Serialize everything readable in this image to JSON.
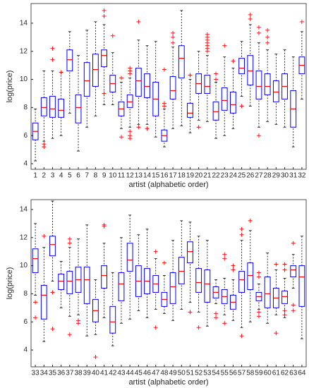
{
  "chart_data": [
    {
      "type": "box",
      "xlabel": "artist (alphabetic order)",
      "ylabel": "log(price)",
      "categories": [
        "1",
        "2",
        "3",
        "4",
        "5",
        "6",
        "7",
        "8",
        "9",
        "10",
        "11",
        "12",
        "13",
        "14",
        "15",
        "16",
        "17",
        "18",
        "19",
        "20",
        "21",
        "22",
        "23",
        "24",
        "25",
        "26",
        "27",
        "28",
        "29",
        "30",
        "31",
        "32"
      ],
      "min": [
        4.2,
        5.6,
        5.8,
        6.0,
        7.6,
        4.9,
        6.6,
        7.4,
        8.2,
        8.2,
        6.5,
        6.6,
        6.8,
        6.8,
        5.9,
        5.2,
        6.5,
        6.7,
        6.2,
        7.1,
        7.0,
        5.8,
        6.0,
        6.5,
        8.8,
        8.1,
        6.6,
        7.0,
        6.8,
        6.6,
        5.2,
        8.6
      ],
      "q1": [
        5.7,
        7.4,
        7.3,
        7.3,
        10.6,
        6.9,
        8.8,
        9.5,
        10.9,
        9.1,
        7.4,
        8.0,
        8.8,
        8.7,
        7.4,
        5.6,
        8.6,
        10.1,
        7.3,
        9.0,
        9.0,
        7.1,
        7.8,
        7.6,
        10.4,
        9.6,
        8.6,
        8.9,
        8.4,
        8.6,
        6.6,
        10.4
      ],
      "median": [
        6.3,
        8.0,
        7.9,
        7.8,
        11.4,
        8.0,
        9.9,
        10.7,
        11.7,
        9.7,
        7.9,
        8.4,
        9.9,
        9.5,
        8.6,
        6.0,
        9.2,
        11.5,
        7.6,
        9.7,
        9.5,
        7.7,
        8.5,
        8.2,
        10.8,
        10.6,
        9.5,
        9.5,
        9.1,
        9.5,
        7.9,
        11.0
      ],
      "q3": [
        6.9,
        8.7,
        8.8,
        8.6,
        12.1,
        8.9,
        11.2,
        11.8,
        12.1,
        10.3,
        8.4,
        8.9,
        10.8,
        10.4,
        9.8,
        6.4,
        10.2,
        12.4,
        8.3,
        10.4,
        10.3,
        8.4,
        9.4,
        9.1,
        11.5,
        11.7,
        10.6,
        10.4,
        9.9,
        10.4,
        9.2,
        11.6
      ],
      "max": [
        7.9,
        10.6,
        10.6,
        10.5,
        13.4,
        11.7,
        13.5,
        14.1,
        13.9,
        11.9,
        9.8,
        10.1,
        12.8,
        12.4,
        12.7,
        7.9,
        12.3,
        14.9,
        10.0,
        12.0,
        11.7,
        9.8,
        11.6,
        10.8,
        12.7,
        13.9,
        12.6,
        12.1,
        11.8,
        12.1,
        11.6,
        13.4
      ],
      "outliers": [
        [],
        [
          5.2,
          5.4
        ],
        [
          11.4,
          12.2
        ],
        [
          10.5
        ],
        [],
        [],
        [],
        [],
        [
          14.5,
          14.9,
          9.0
        ],
        [
          13.1
        ],
        [
          5.9,
          10.1
        ],
        [
          10.4,
          10.6,
          10.8,
          6.3,
          6.0,
          5.8
        ],
        [
          14.1,
          6.6
        ],
        [
          6.5
        ],
        [],
        [
          8.1,
          8.3,
          10.7
        ],
        [
          12.6,
          13.0,
          13.3
        ],
        [],
        [
          10.3
        ],
        [
          6.6
        ],
        [
          12.0,
          12.2,
          12.4,
          12.6,
          12.8,
          13.0,
          13.2
        ],
        [
          10.0,
          10.4
        ],
        [
          12.4
        ],
        [
          11.3
        ],
        [
          8.1
        ],
        [
          14.3,
          14.6
        ],
        [
          13.3,
          13.7,
          6.0
        ],
        [
          12.6,
          13.0,
          13.5
        ],
        [],
        [],
        [],
        [
          14.1
        ]
      ],
      "ylim": [
        3.6,
        15.4
      ],
      "yticks": [
        4,
        6,
        8,
        10,
        12,
        14
      ],
      "box_color": "#0000ff",
      "median_color": "#ff0000",
      "outlier_color": "#ff0000"
    },
    {
      "type": "box",
      "xlabel": "artist (alphabetic order)",
      "ylabel": "log(price)",
      "categories": [
        "33",
        "34",
        "35",
        "36",
        "37",
        "38",
        "39",
        "40",
        "41",
        "42",
        "43",
        "44",
        "45",
        "46",
        "47",
        "48",
        "49",
        "50",
        "51",
        "52",
        "53",
        "54",
        "55",
        "56",
        "57",
        "58",
        "59",
        "60",
        "61",
        "62",
        "63",
        "64"
      ],
      "min": [
        7.9,
        4.6,
        8.9,
        7.0,
        6.4,
        6.5,
        5.0,
        5.1,
        6.3,
        4.3,
        5.9,
        6.2,
        6.8,
        6.3,
        6.9,
        6.6,
        6.1,
        6.9,
        7.4,
        6.7,
        5.7,
        7.3,
        6.5,
        6.1,
        5.6,
        6.0,
        6.9,
        5.9,
        6.5,
        6.3,
        8.4,
        4.8
      ],
      "q1": [
        9.5,
        6.2,
        10.7,
        8.3,
        8.0,
        8.1,
        7.3,
        6.0,
        8.4,
        5.2,
        7.5,
        9.6,
        7.8,
        8.0,
        8.1,
        7.1,
        7.3,
        8.7,
        10.2,
        8.1,
        7.4,
        7.7,
        7.3,
        6.9,
        8.1,
        8.3,
        7.5,
        7.0,
        7.0,
        7.3,
        9.2,
        7.1
      ],
      "median": [
        10.5,
        7.9,
        11.5,
        8.9,
        8.9,
        9.0,
        9.0,
        6.8,
        9.3,
        6.0,
        8.7,
        10.4,
        8.9,
        8.9,
        8.7,
        7.6,
        8.5,
        9.6,
        11.0,
        8.8,
        8.7,
        8.1,
        7.8,
        7.4,
        9.0,
        9.3,
        7.8,
        8.0,
        7.7,
        7.8,
        9.7,
        9.2
      ],
      "q3": [
        11.2,
        8.6,
        12.1,
        9.4,
        9.6,
        9.9,
        9.9,
        7.6,
        10.0,
        7.1,
        9.5,
        11.6,
        10.0,
        9.8,
        9.3,
        8.1,
        9.5,
        10.6,
        11.7,
        9.8,
        9.7,
        8.5,
        8.3,
        7.9,
        9.6,
        10.2,
        8.1,
        9.2,
        8.4,
        8.2,
        10.0,
        10.0
      ],
      "max": [
        13.0,
        11.3,
        14.6,
        10.3,
        11.3,
        11.9,
        12.9,
        9.0,
        11.6,
        9.5,
        12.0,
        13.6,
        12.2,
        12.6,
        10.5,
        9.3,
        11.8,
        13.2,
        13.1,
        12.1,
        11.8,
        9.0,
        9.1,
        9.0,
        11.8,
        12.5,
        8.7,
        10.9,
        9.7,
        9.1,
        10.8,
        12.1
      ],
      "outliers": [
        [
          6.3,
          7.4
        ],
        [
          12.1
        ],
        [
          5.5,
          8.1
        ],
        [],
        [
          11.6,
          11.9,
          5.1
        ],
        [
          6.1,
          5.9
        ],
        [],
        [
          3.5
        ],
        [
          12.8,
          12.9
        ],
        [],
        [],
        [],
        [],
        [],
        [
          11.0,
          5.6
        ],
        [
          10.2
        ],
        [],
        [],
        [
          6.7
        ],
        [
          5.6
        ],
        [],
        [
          6.3,
          6.6
        ],
        [
          10.5,
          10.8,
          5.9
        ],
        [
          9.7,
          10.0
        ],
        [
          12.2,
          12.6,
          5.0
        ],
        [
          13.2
        ],
        [
          9.2,
          9.5,
          6.7,
          6.4
        ],
        [],
        [
          10.1,
          5.2
        ],
        [
          9.7,
          10.1,
          6.8,
          6.5
        ],
        [
          11.6,
          7.2,
          6.8
        ],
        []
      ],
      "ylim": [
        2.8,
        14.7
      ],
      "yticks": [
        4,
        6,
        8,
        10,
        12,
        14
      ],
      "box_color": "#0000ff",
      "median_color": "#ff0000",
      "outlier_color": "#ff0000"
    }
  ]
}
